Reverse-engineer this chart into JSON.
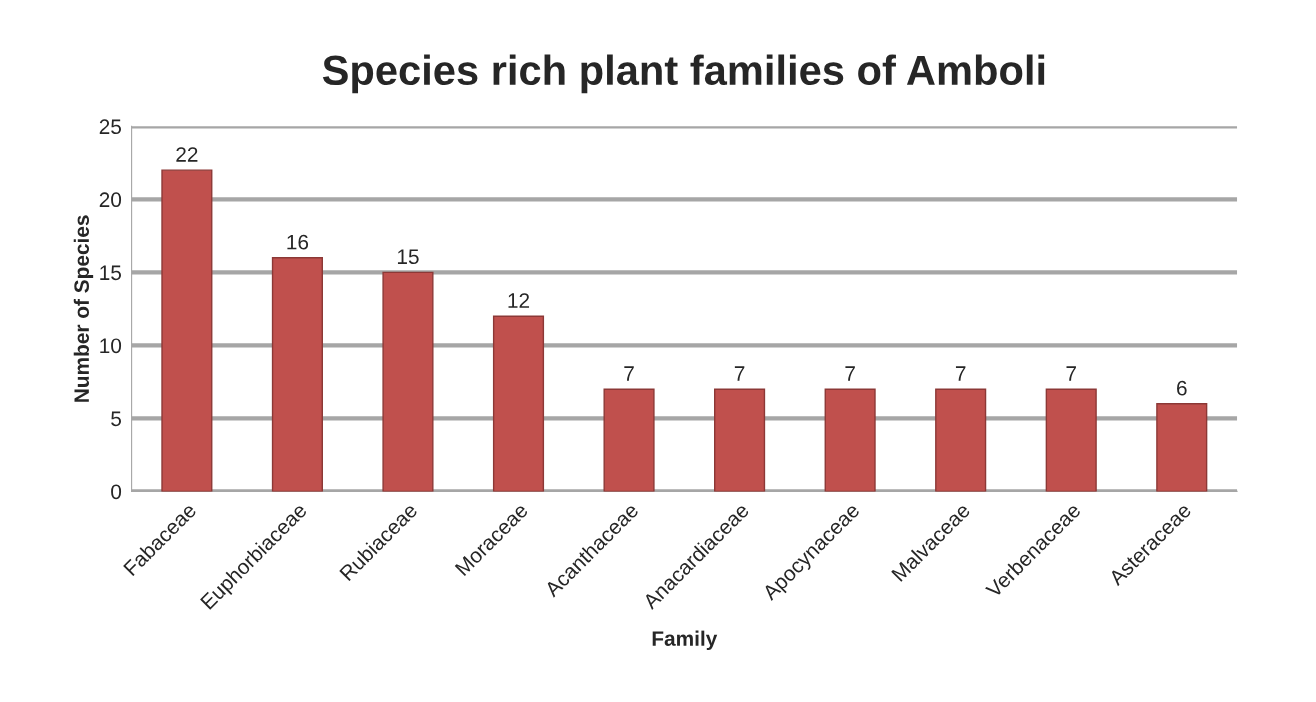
{
  "chart_data": {
    "type": "bar",
    "title": "Species rich plant families of Amboli",
    "xlabel": "Family",
    "ylabel": "Number of Species",
    "categories": [
      "Fabaceae",
      "Euphorbiaceae",
      "Rubiaceae",
      "Moraceae",
      "Acanthaceae",
      "Anacardiaceae",
      "Apocynaceae",
      "Malvaceae",
      "Verbenaceae",
      "Asteraceae"
    ],
    "values": [
      22,
      16,
      15,
      12,
      7,
      7,
      7,
      7,
      7,
      6
    ],
    "color": "#c0504d",
    "ylim": [
      0,
      25
    ],
    "yticks": [
      0,
      5,
      10,
      15,
      20,
      25
    ],
    "grid": "y",
    "data_labels": true
  }
}
